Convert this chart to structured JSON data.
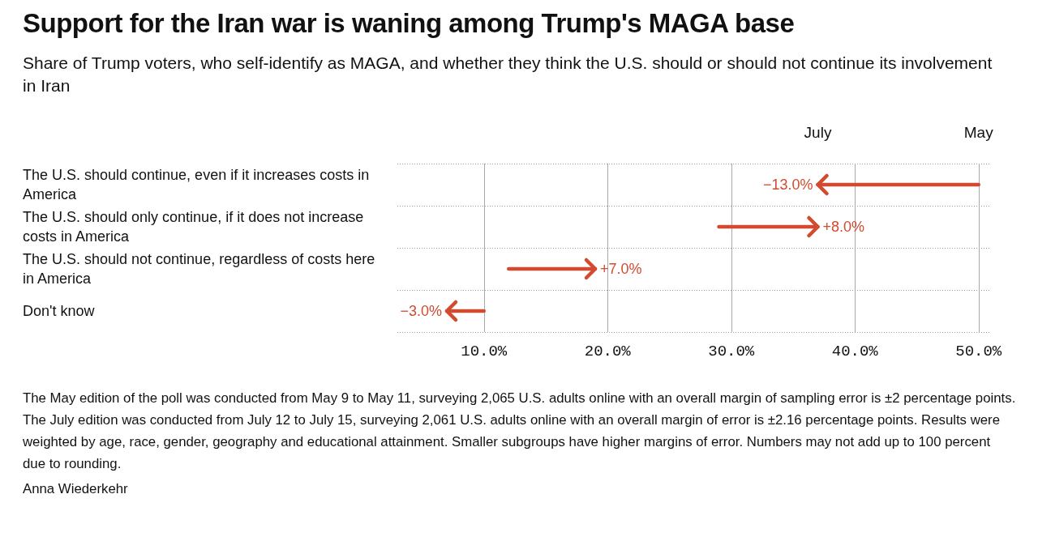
{
  "chart_data": {
    "type": "bar",
    "orientation": "horizontal",
    "title": "Support for the Iran war is waning among Trump's MAGA base",
    "subtitle": "Share of Trump voters, who self-identify as MAGA, and whether they think the U.S. should or should not continue its involvement in Iran",
    "categories": [
      "The U.S. should continue, even if it increases costs in America",
      "The U.S. should only continue, if it does not increase costs in America",
      "The U.S. should not continue, regardless of costs here in America",
      "Don't know"
    ],
    "base": [
      50,
      29,
      12,
      10
    ],
    "values": [
      -13,
      8,
      7,
      -3
    ],
    "value_labels": [
      "−13.0%",
      "+8.0%",
      "+7.0%",
      "−3.0%"
    ],
    "color": "#d24a2f",
    "xlim": [
      3,
      51
    ],
    "xticks": [
      {
        "value": 10,
        "label": "10.0%"
      },
      {
        "value": 20,
        "label": "20.0%"
      },
      {
        "value": 30,
        "label": "30.0%"
      },
      {
        "value": 40,
        "label": "40.0%"
      },
      {
        "value": 50,
        "label": "50.0%"
      }
    ],
    "grid": true,
    "annotations": [
      "July",
      "May",
      "The May edition of the poll was conducted from May 9 to May 11, surveying 2,065 U.S. adults online with an overall margin of sampling error is ±2 percentage points. The July edition was conducted from July 12 to July 15, surveying 2,061 U.S. adults online with an overall margin of error is ±2.16 percentage points. Results were weighted by age, race, gender, geography and educational attainment. Smaller subgroups have higher margins of error. Numbers may not add up to 100 percent due to rounding.",
      "Anna Wiederkehr"
    ]
  }
}
